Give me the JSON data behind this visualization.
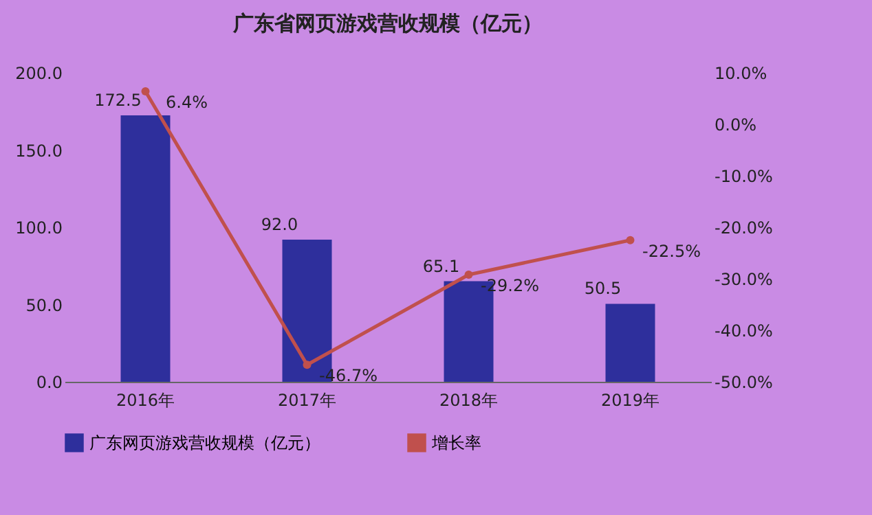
{
  "chart_data": {
    "type": "bar",
    "title": "广东省网页游戏营收规模（亿元）",
    "categories": [
      "2016年",
      "2017年",
      "2018年",
      "2019年"
    ],
    "series": [
      {
        "name": "广东网页游戏营收规模（亿元）",
        "color": "#2e2f9c",
        "values": [
          172.5,
          92.0,
          65.1,
          50.5
        ],
        "value_labels": [
          "172.5",
          "92.0",
          "65.1",
          "50.5"
        ]
      },
      {
        "name": "增长率",
        "type": "line",
        "axis": "y2",
        "color": "#c0504d",
        "marker": "circle",
        "values": [
          6.4,
          -46.7,
          -29.2,
          -22.5
        ],
        "value_labels": [
          "6.4%",
          "-46.7%",
          "-29.2%",
          "-22.5%"
        ]
      }
    ],
    "ylim": [
      0,
      200
    ],
    "yticks": [
      {
        "value": 0,
        "label": "0.0"
      },
      {
        "value": 50,
        "label": "50.0"
      },
      {
        "value": 100,
        "label": "100.0"
      },
      {
        "value": 150,
        "label": "150.0"
      },
      {
        "value": 200,
        "label": "200.0"
      }
    ],
    "y2lim": [
      -50,
      10
    ],
    "y2ticks": [
      {
        "value": 10,
        "label": "10.0%"
      },
      {
        "value": 0,
        "label": "0.0%"
      },
      {
        "value": -10,
        "label": "-10.0%"
      },
      {
        "value": -20,
        "label": "-20.0%"
      },
      {
        "value": -30,
        "label": "-30.0%"
      },
      {
        "value": -40,
        "label": "-40.0%"
      },
      {
        "value": -50,
        "label": "-50.0%"
      }
    ],
    "legend": "bottom",
    "grid": false
  }
}
